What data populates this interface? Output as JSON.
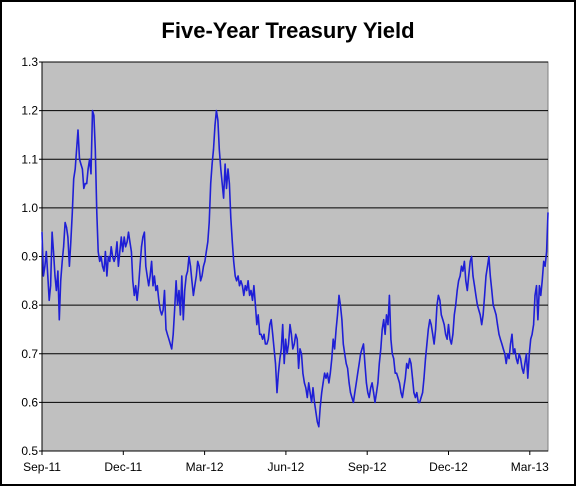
{
  "chart_data": {
    "type": "line",
    "title": "Five-Year Treasury Yield",
    "xlabel": "",
    "ylabel": "",
    "ylim": [
      0.5,
      1.3
    ],
    "yticks": [
      "0.5",
      "0.6",
      "0.7",
      "0.8",
      "0.9",
      "1.0",
      "1.1",
      "1.2",
      "1.3"
    ],
    "xticks": [
      "Sep-11",
      "Dec-11",
      "Mar-12",
      "Jun-12",
      "Sep-12",
      "Dec-12",
      "Mar-13"
    ],
    "grid": true,
    "legend": "none",
    "colors": {
      "line": "#1f1fd6",
      "plot_bg": "#c0c0c0",
      "grid": "#000000"
    },
    "series": [
      {
        "values": [
          0.95,
          0.86,
          0.88,
          0.91,
          0.86,
          0.81,
          0.84,
          0.95,
          0.91,
          0.86,
          0.83,
          0.87,
          0.77,
          0.85,
          0.89,
          0.92,
          0.97,
          0.96,
          0.94,
          0.88,
          0.93,
          0.99,
          1.06,
          1.08,
          1.12,
          1.16,
          1.1,
          1.09,
          1.08,
          1.04,
          1.05,
          1.05,
          1.08,
          1.1,
          1.07,
          1.2,
          1.19,
          1.12,
          0.99,
          0.91,
          0.89,
          0.9,
          0.88,
          0.87,
          0.91,
          0.86,
          0.9,
          0.89,
          0.92,
          0.9,
          0.89,
          0.9,
          0.93,
          0.88,
          0.91,
          0.94,
          0.91,
          0.94,
          0.92,
          0.93,
          0.95,
          0.93,
          0.91,
          0.85,
          0.82,
          0.84,
          0.81,
          0.84,
          0.88,
          0.92,
          0.94,
          0.95,
          0.88,
          0.86,
          0.84,
          0.86,
          0.89,
          0.84,
          0.86,
          0.83,
          0.84,
          0.81,
          0.79,
          0.78,
          0.79,
          0.83,
          0.75,
          0.74,
          0.73,
          0.72,
          0.71,
          0.74,
          0.79,
          0.85,
          0.8,
          0.83,
          0.78,
          0.86,
          0.77,
          0.83,
          0.86,
          0.87,
          0.9,
          0.88,
          0.85,
          0.82,
          0.84,
          0.86,
          0.89,
          0.88,
          0.85,
          0.86,
          0.88,
          0.89,
          0.91,
          0.93,
          0.97,
          1.05,
          1.09,
          1.12,
          1.17,
          1.2,
          1.18,
          1.12,
          1.08,
          1.05,
          1.02,
          1.09,
          1.04,
          1.08,
          1.05,
          0.98,
          0.93,
          0.89,
          0.86,
          0.85,
          0.86,
          0.84,
          0.85,
          0.84,
          0.82,
          0.84,
          0.83,
          0.85,
          0.82,
          0.83,
          0.81,
          0.84,
          0.8,
          0.76,
          0.78,
          0.74,
          0.74,
          0.73,
          0.74,
          0.72,
          0.72,
          0.73,
          0.76,
          0.77,
          0.74,
          0.71,
          0.68,
          0.62,
          0.66,
          0.69,
          0.71,
          0.76,
          0.68,
          0.73,
          0.7,
          0.72,
          0.76,
          0.74,
          0.71,
          0.72,
          0.74,
          0.73,
          0.67,
          0.71,
          0.7,
          0.66,
          0.64,
          0.63,
          0.61,
          0.64,
          0.62,
          0.6,
          0.63,
          0.6,
          0.58,
          0.56,
          0.55,
          0.59,
          0.62,
          0.64,
          0.66,
          0.65,
          0.66,
          0.64,
          0.66,
          0.69,
          0.73,
          0.71,
          0.75,
          0.78,
          0.82,
          0.8,
          0.77,
          0.72,
          0.7,
          0.68,
          0.67,
          0.64,
          0.62,
          0.61,
          0.6,
          0.62,
          0.64,
          0.66,
          0.68,
          0.7,
          0.71,
          0.72,
          0.68,
          0.64,
          0.62,
          0.61,
          0.63,
          0.64,
          0.62,
          0.6,
          0.62,
          0.64,
          0.68,
          0.71,
          0.75,
          0.77,
          0.74,
          0.78,
          0.76,
          0.82,
          0.73,
          0.7,
          0.69,
          0.66,
          0.66,
          0.65,
          0.64,
          0.62,
          0.61,
          0.63,
          0.65,
          0.68,
          0.67,
          0.69,
          0.68,
          0.65,
          0.62,
          0.61,
          0.62,
          0.6,
          0.6,
          0.61,
          0.62,
          0.65,
          0.69,
          0.72,
          0.75,
          0.77,
          0.76,
          0.74,
          0.72,
          0.75,
          0.8,
          0.82,
          0.81,
          0.78,
          0.77,
          0.76,
          0.74,
          0.73,
          0.76,
          0.73,
          0.72,
          0.74,
          0.78,
          0.8,
          0.83,
          0.85,
          0.86,
          0.88,
          0.87,
          0.89,
          0.85,
          0.83,
          0.86,
          0.89,
          0.9,
          0.86,
          0.84,
          0.82,
          0.8,
          0.79,
          0.78,
          0.76,
          0.78,
          0.82,
          0.86,
          0.88,
          0.9,
          0.86,
          0.83,
          0.8,
          0.79,
          0.78,
          0.76,
          0.74,
          0.73,
          0.72,
          0.71,
          0.7,
          0.68,
          0.7,
          0.69,
          0.72,
          0.74,
          0.7,
          0.71,
          0.69,
          0.68,
          0.7,
          0.69,
          0.67,
          0.66,
          0.68,
          0.7,
          0.65,
          0.7,
          0.73,
          0.74,
          0.76,
          0.82,
          0.84,
          0.77,
          0.84,
          0.82,
          0.85,
          0.89,
          0.88,
          0.91,
          0.99
        ]
      }
    ]
  }
}
